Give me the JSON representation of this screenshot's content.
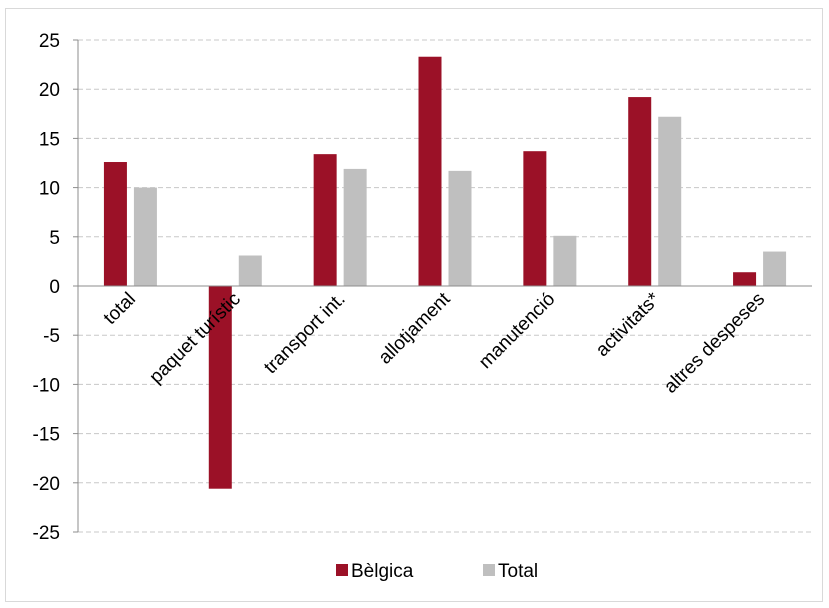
{
  "chart_data": {
    "type": "bar",
    "categories": [
      "total",
      "paquet turístic",
      "transport int.",
      "allotjament",
      "manutenció",
      "activitats*",
      "altres despeses"
    ],
    "series": [
      {
        "name": "Bèlgica",
        "color": "#9b1127",
        "values": [
          12.6,
          -20.6,
          13.4,
          23.3,
          13.7,
          19.2,
          1.4
        ]
      },
      {
        "name": "Total",
        "color": "#bfbfbf",
        "values": [
          10.0,
          3.1,
          11.9,
          11.7,
          5.1,
          17.2,
          3.5
        ]
      }
    ],
    "ylim": [
      -25,
      25
    ],
    "yticks": [
      25,
      20,
      15,
      10,
      5,
      0,
      -5,
      -10,
      -15,
      -20,
      -25
    ],
    "grid": true,
    "legend_position": "bottom",
    "title": "",
    "xlabel": "",
    "ylabel": ""
  }
}
